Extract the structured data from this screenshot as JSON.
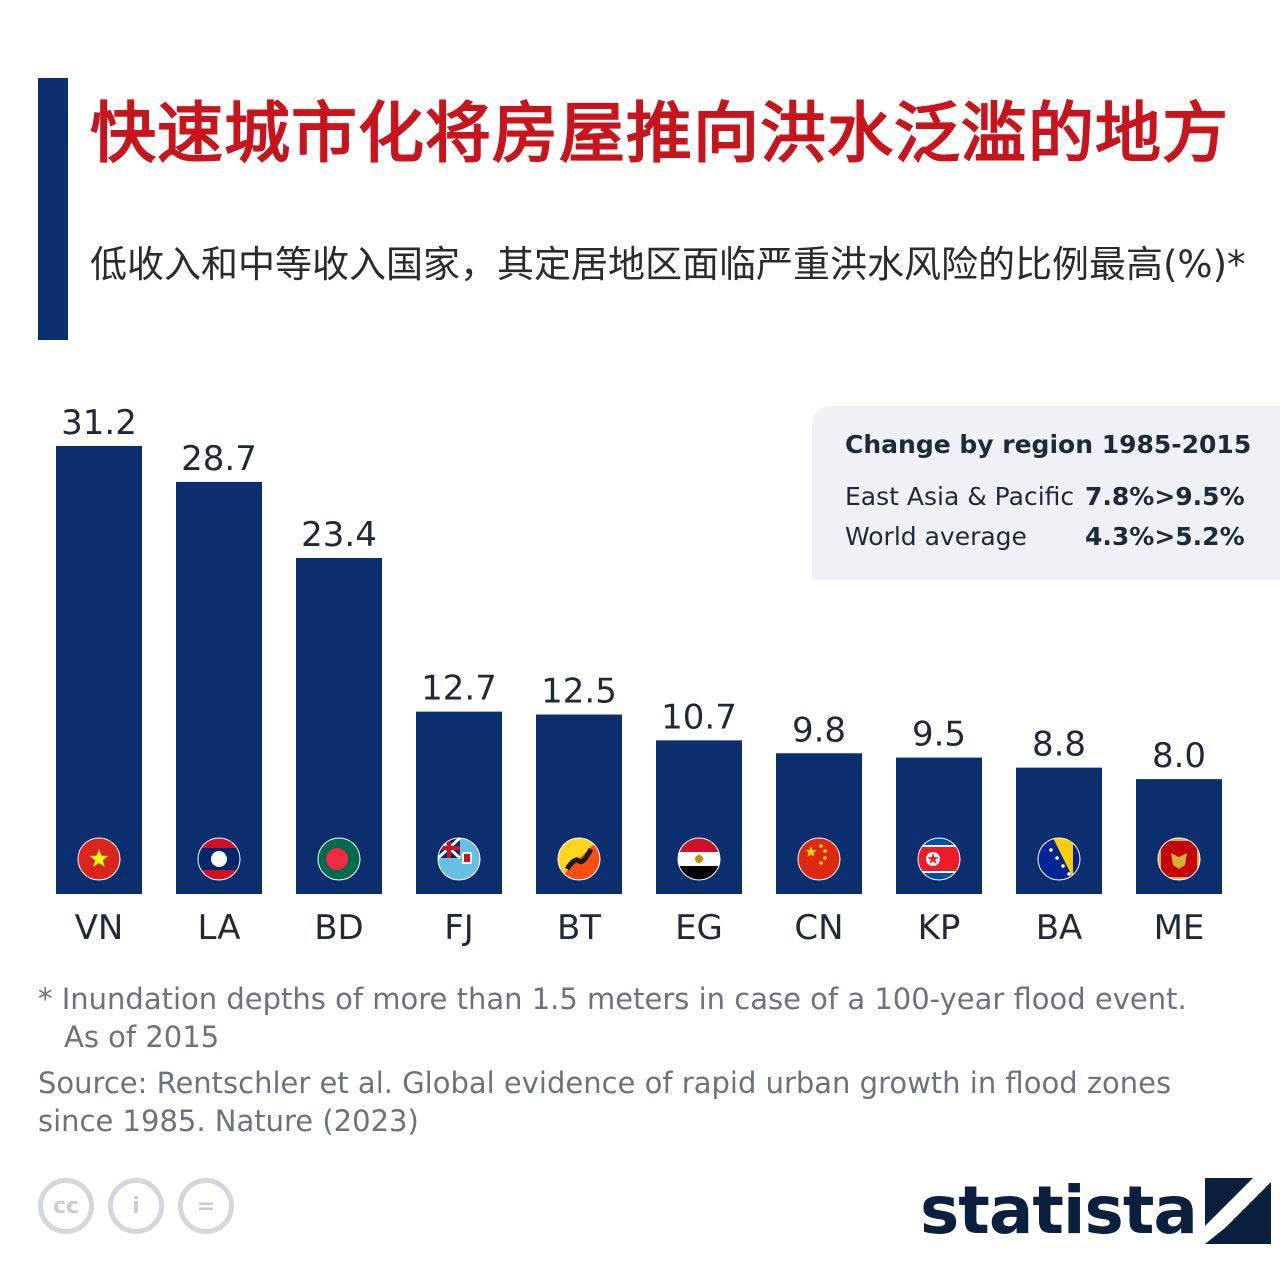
{
  "title": "快速城市化将房屋推向洪水泛滥的地方",
  "subtitle": "低收入和中等收入国家，其定居地区面临严重洪水风险的比例最高(%)*",
  "inset": {
    "title": "Change by region 1985-2015",
    "rows": [
      {
        "label": "East Asia & Pacific",
        "value": "7.8%>9.5%"
      },
      {
        "label": "World average",
        "value": "4.3%>5.2%"
      }
    ]
  },
  "footnote_line1": "* Inundation depths of more than 1.5 meters in case of a 100-year flood event.",
  "footnote_line2": "As of 2015",
  "source": "Source: Rentschler et al. Global evidence of rapid urban growth in flood zones since 1985. Nature (2023)",
  "license": {
    "cc": "cc",
    "by": "i",
    "nd": "="
  },
  "logo": "statista",
  "colors": {
    "bar": "#0b2f6e",
    "title": "#c8141c",
    "label": "#1f2937"
  },
  "chart_data": {
    "type": "bar",
    "categories": [
      "VN",
      "LA",
      "BD",
      "FJ",
      "BT",
      "EG",
      "CN",
      "KP",
      "BA",
      "ME"
    ],
    "values": [
      31.2,
      28.7,
      23.4,
      12.7,
      12.5,
      10.7,
      9.8,
      9.5,
      8.8,
      8.0
    ],
    "value_labels": [
      "31.2",
      "28.7",
      "23.4",
      "12.7",
      "12.5",
      "10.7",
      "9.8",
      "9.5",
      "8.8",
      "8.0"
    ],
    "flags": [
      "flag-vietnam",
      "flag-laos",
      "flag-bangladesh",
      "flag-fiji",
      "flag-bhutan",
      "flag-egypt",
      "flag-china",
      "flag-north-korea",
      "flag-bosnia",
      "flag-montenegro"
    ],
    "ylim": [
      0,
      31.2
    ],
    "grid": false,
    "legend": "none"
  }
}
